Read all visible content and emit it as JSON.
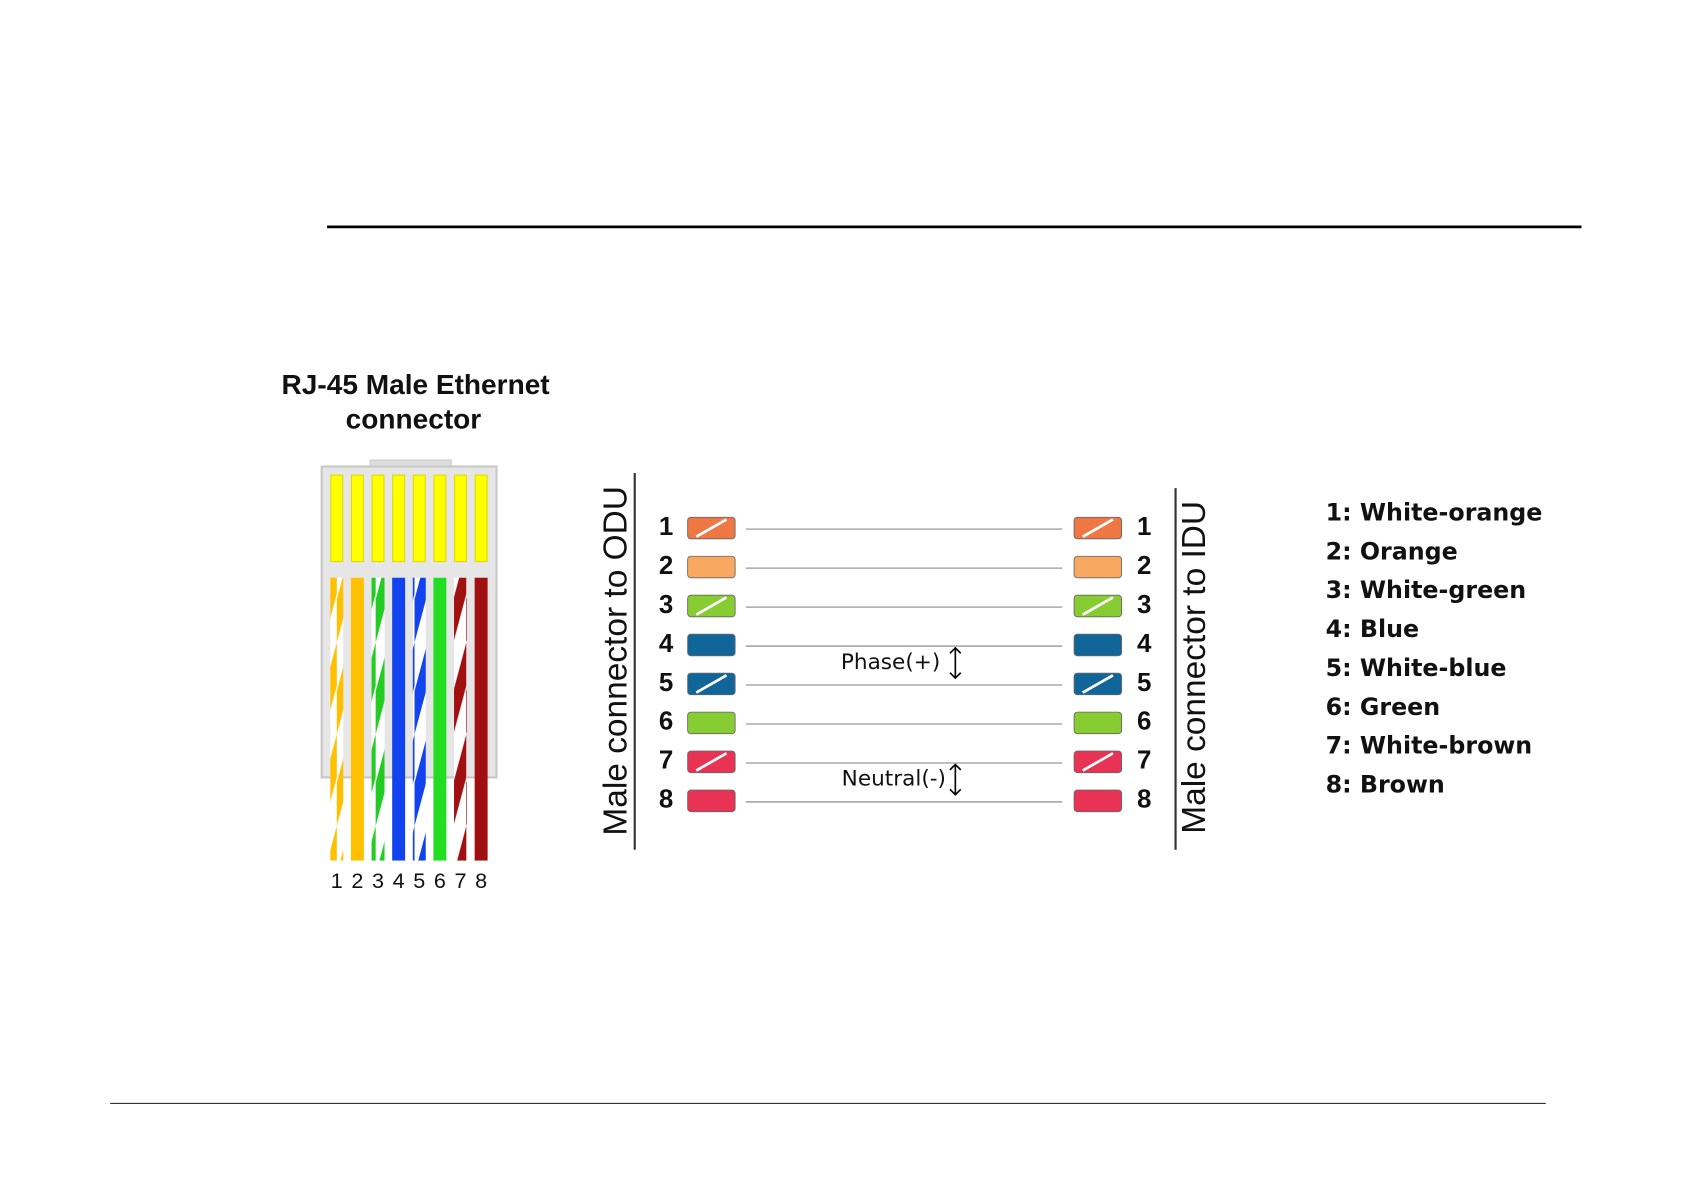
{
  "connector": {
    "title_lines": [
      "RJ-45 Male Ethernet",
      "connector"
    ],
    "pin_labels": [
      "1",
      "2",
      "3",
      "4",
      "5",
      "6",
      "7",
      "8"
    ]
  },
  "wiring": {
    "left_label": "Male connector to ODU",
    "right_label": "Male connector to IDU",
    "left_pins": [
      "1",
      "2",
      "3",
      "4",
      "5",
      "6",
      "7",
      "8"
    ],
    "right_pins": [
      "1",
      "2",
      "3",
      "4",
      "5",
      "6",
      "7",
      "8"
    ],
    "annotations": [
      "Phase(+)",
      "Neutral(-)"
    ]
  },
  "legend": [
    "1: White-orange",
    "2: Orange",
    "3: White-green",
    "4: Blue",
    "5: White-blue",
    "6: Green",
    "7: White-brown",
    "8: Brown"
  ]
}
